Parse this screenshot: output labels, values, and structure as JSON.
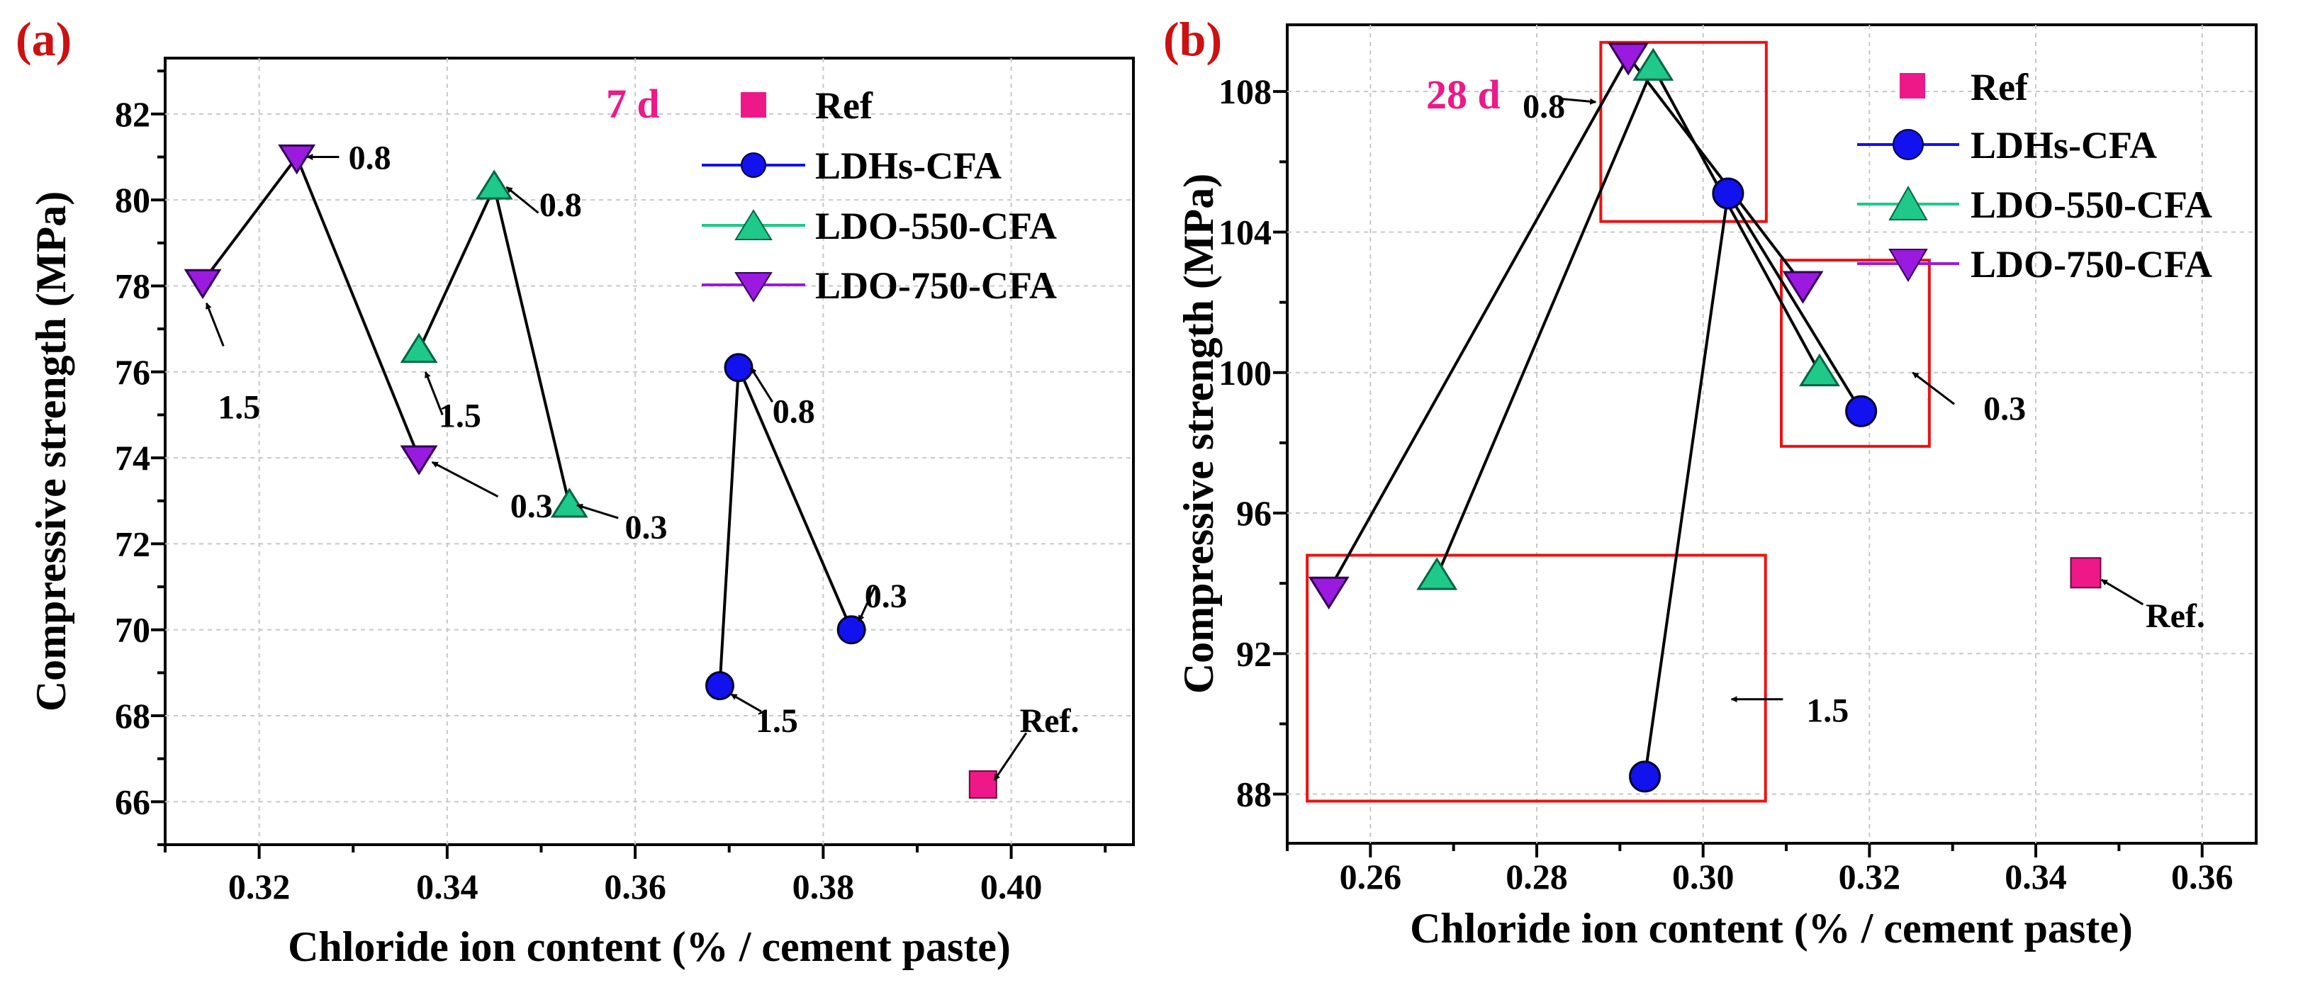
{
  "colors": {
    "ref": "#ee1889",
    "ldhs": "#1212ee",
    "ldo550": "#1ec98a",
    "ldo750": "#9a1adf",
    "panel_label": "#cc1111",
    "age_label": "#ee1889",
    "highlight_box": "#ee1111",
    "grid": "#c8c8c8"
  },
  "chart_data": [
    {
      "type": "scatter",
      "panel_label": "(a)",
      "age_label": "7 d",
      "xlabel": "Chloride ion content (% / cement paste)",
      "ylabel": "Compressive strength (MPa)",
      "xlim": [
        0.31,
        0.413
      ],
      "ylim": [
        65.0,
        83.3
      ],
      "xticks": [
        0.32,
        0.34,
        0.36,
        0.38,
        0.4
      ],
      "xtick_labels": [
        "0.32",
        "0.34",
        "0.36",
        "0.38",
        "0.40"
      ],
      "xminor": [
        0.31,
        0.33,
        0.35,
        0.37,
        0.39,
        0.41
      ],
      "yticks": [
        66,
        68,
        70,
        72,
        74,
        76,
        78,
        80,
        82
      ],
      "ytick_labels": [
        "66",
        "68",
        "70",
        "72",
        "74",
        "76",
        "78",
        "80",
        "82"
      ],
      "yminor": [
        65,
        67,
        69,
        71,
        73,
        75,
        77,
        79,
        81,
        83
      ],
      "grid": true,
      "legend_position": "top-right",
      "series": [
        {
          "name": "Ref",
          "key": "ref",
          "marker": "square",
          "connected": false,
          "points": [
            {
              "x": 0.397,
              "y": 66.4
            }
          ]
        },
        {
          "name": "LDHs-CFA",
          "key": "ldhs",
          "marker": "circle",
          "connected": true,
          "points": [
            {
              "x": 0.369,
              "y": 68.7
            },
            {
              "x": 0.371,
              "y": 76.1
            },
            {
              "x": 0.383,
              "y": 70.0
            }
          ]
        },
        {
          "name": "LDO-550-CFA",
          "key": "ldo550",
          "marker": "triangle-up",
          "connected": true,
          "points": [
            {
              "x": 0.337,
              "y": 76.5
            },
            {
              "x": 0.345,
              "y": 80.3
            },
            {
              "x": 0.353,
              "y": 72.9
            }
          ]
        },
        {
          "name": "LDO-750-CFA",
          "key": "ldo750",
          "marker": "triangle-down",
          "connected": true,
          "points": [
            {
              "x": 0.314,
              "y": 78.1
            },
            {
              "x": 0.324,
              "y": 81.0
            },
            {
              "x": 0.337,
              "y": 74.0
            }
          ]
        }
      ],
      "annotations": [
        {
          "text": "0.8",
          "text_x": 0.3295,
          "text_y": 81.0,
          "arrow_from_x": 0.3285,
          "arrow_from_y": 81.0,
          "arrow_to_x": 0.3251,
          "arrow_to_y": 81.0
        },
        {
          "text": "1.5",
          "text_x": 0.3156,
          "text_y": 75.2,
          "arrow_from_x": 0.3162,
          "arrow_from_y": 76.6,
          "arrow_to_x": 0.3144,
          "arrow_to_y": 77.6
        },
        {
          "text": "0.8",
          "text_x": 0.3498,
          "text_y": 79.9,
          "arrow_from_x": 0.3497,
          "arrow_from_y": 79.7,
          "arrow_to_x": 0.3463,
          "arrow_to_y": 80.3
        },
        {
          "text": "1.5",
          "text_x": 0.3391,
          "text_y": 75.0,
          "arrow_from_x": 0.3395,
          "arrow_from_y": 75.0,
          "arrow_to_x": 0.3377,
          "arrow_to_y": 76.0
        },
        {
          "text": "0.3",
          "text_x": 0.3467,
          "text_y": 72.9,
          "arrow_from_x": 0.3454,
          "arrow_from_y": 73.1,
          "arrow_to_x": 0.3384,
          "arrow_to_y": 73.9
        },
        {
          "text": "0.3",
          "text_x": 0.3589,
          "text_y": 72.4,
          "arrow_from_x": 0.3582,
          "arrow_from_y": 72.6,
          "arrow_to_x": 0.3538,
          "arrow_to_y": 72.9
        },
        {
          "text": "0.8",
          "text_x": 0.3746,
          "text_y": 75.1,
          "arrow_from_x": 0.3746,
          "arrow_from_y": 75.3,
          "arrow_to_x": 0.3723,
          "arrow_to_y": 76.1
        },
        {
          "text": "0.3",
          "text_x": 0.3844,
          "text_y": 70.8,
          "arrow_from_x": 0.3855,
          "arrow_from_y": 71.0,
          "arrow_to_x": 0.3838,
          "arrow_to_y": 70.2
        },
        {
          "text": "1.5",
          "text_x": 0.3728,
          "text_y": 67.9,
          "arrow_from_x": 0.3734,
          "arrow_from_y": 68.1,
          "arrow_to_x": 0.3702,
          "arrow_to_y": 68.5
        },
        {
          "text": "Ref.",
          "text_x": 0.4009,
          "text_y": 67.9,
          "arrow_from_x": 0.4016,
          "arrow_from_y": 67.6,
          "arrow_to_x": 0.3982,
          "arrow_to_y": 66.5
        }
      ],
      "highlight_boxes": []
    },
    {
      "type": "scatter",
      "panel_label": "(b)",
      "age_label": "28 d",
      "xlabel": "Chloride ion content (% / cement paste)",
      "ylabel": "Compressive strength (MPa)",
      "xlim": [
        0.25,
        0.3665
      ],
      "ylim": [
        86.6,
        109.9
      ],
      "xticks": [
        0.26,
        0.28,
        0.3,
        0.32,
        0.34,
        0.36
      ],
      "xtick_labels": [
        "0.26",
        "0.28",
        "0.30",
        "0.32",
        "0.34",
        "0.36"
      ],
      "xminor": [
        0.25,
        0.27,
        0.29,
        0.31,
        0.33,
        0.35
      ],
      "yticks": [
        88,
        92,
        96,
        100,
        104,
        108
      ],
      "ytick_labels": [
        "88",
        "92",
        "96",
        "100",
        "104",
        "108"
      ],
      "yminor": [
        90,
        94,
        98,
        102,
        106
      ],
      "grid": true,
      "legend_position": "top-right",
      "series": [
        {
          "name": "Ref",
          "key": "ref",
          "marker": "square",
          "connected": false,
          "points": [
            {
              "x": 0.346,
              "y": 94.3
            }
          ]
        },
        {
          "name": "LDHs-CFA",
          "key": "ldhs",
          "marker": "circle",
          "connected": true,
          "points": [
            {
              "x": 0.293,
              "y": 88.5
            },
            {
              "x": 0.303,
              "y": 105.1
            },
            {
              "x": 0.319,
              "y": 98.9
            }
          ]
        },
        {
          "name": "LDO-550-CFA",
          "key": "ldo550",
          "marker": "triangle-up",
          "connected": true,
          "points": [
            {
              "x": 0.268,
              "y": 94.2
            },
            {
              "x": 0.294,
              "y": 108.7
            },
            {
              "x": 0.314,
              "y": 100.0
            }
          ]
        },
        {
          "name": "LDO-750-CFA",
          "key": "ldo750",
          "marker": "triangle-down",
          "connected": true,
          "points": [
            {
              "x": 0.255,
              "y": 93.8
            },
            {
              "x": 0.291,
              "y": 109.0
            },
            {
              "x": 0.312,
              "y": 102.5
            }
          ]
        }
      ],
      "annotations": [
        {
          "text": "0.8",
          "text_x": 0.2783,
          "text_y": 107.6,
          "arrow_from_x": 0.2826,
          "arrow_from_y": 107.8,
          "arrow_to_x": 0.2871,
          "arrow_to_y": 107.7
        },
        {
          "text": "0.3",
          "text_x": 0.3337,
          "text_y": 99.0,
          "arrow_from_x": 0.3302,
          "arrow_from_y": 99.1,
          "arrow_to_x": 0.3252,
          "arrow_to_y": 100.0
        },
        {
          "text": "1.5",
          "text_x": 0.3124,
          "text_y": 90.4,
          "arrow_from_x": 0.3096,
          "arrow_from_y": 90.7,
          "arrow_to_x": 0.3034,
          "arrow_to_y": 90.7
        },
        {
          "text": "Ref.",
          "text_x": 0.3532,
          "text_y": 93.1,
          "arrow_from_x": 0.3529,
          "arrow_from_y": 93.4,
          "arrow_to_x": 0.3479,
          "arrow_to_y": 94.1
        }
      ],
      "highlight_boxes": [
        {
          "x0": 0.2877,
          "y0": 104.3,
          "x1": 0.3076,
          "y1": 109.4
        },
        {
          "x0": 0.3094,
          "y0": 97.9,
          "x1": 0.3272,
          "y1": 103.2
        },
        {
          "x0": 0.2524,
          "y0": 87.8,
          "x1": 0.3075,
          "y1": 94.8
        }
      ]
    }
  ]
}
